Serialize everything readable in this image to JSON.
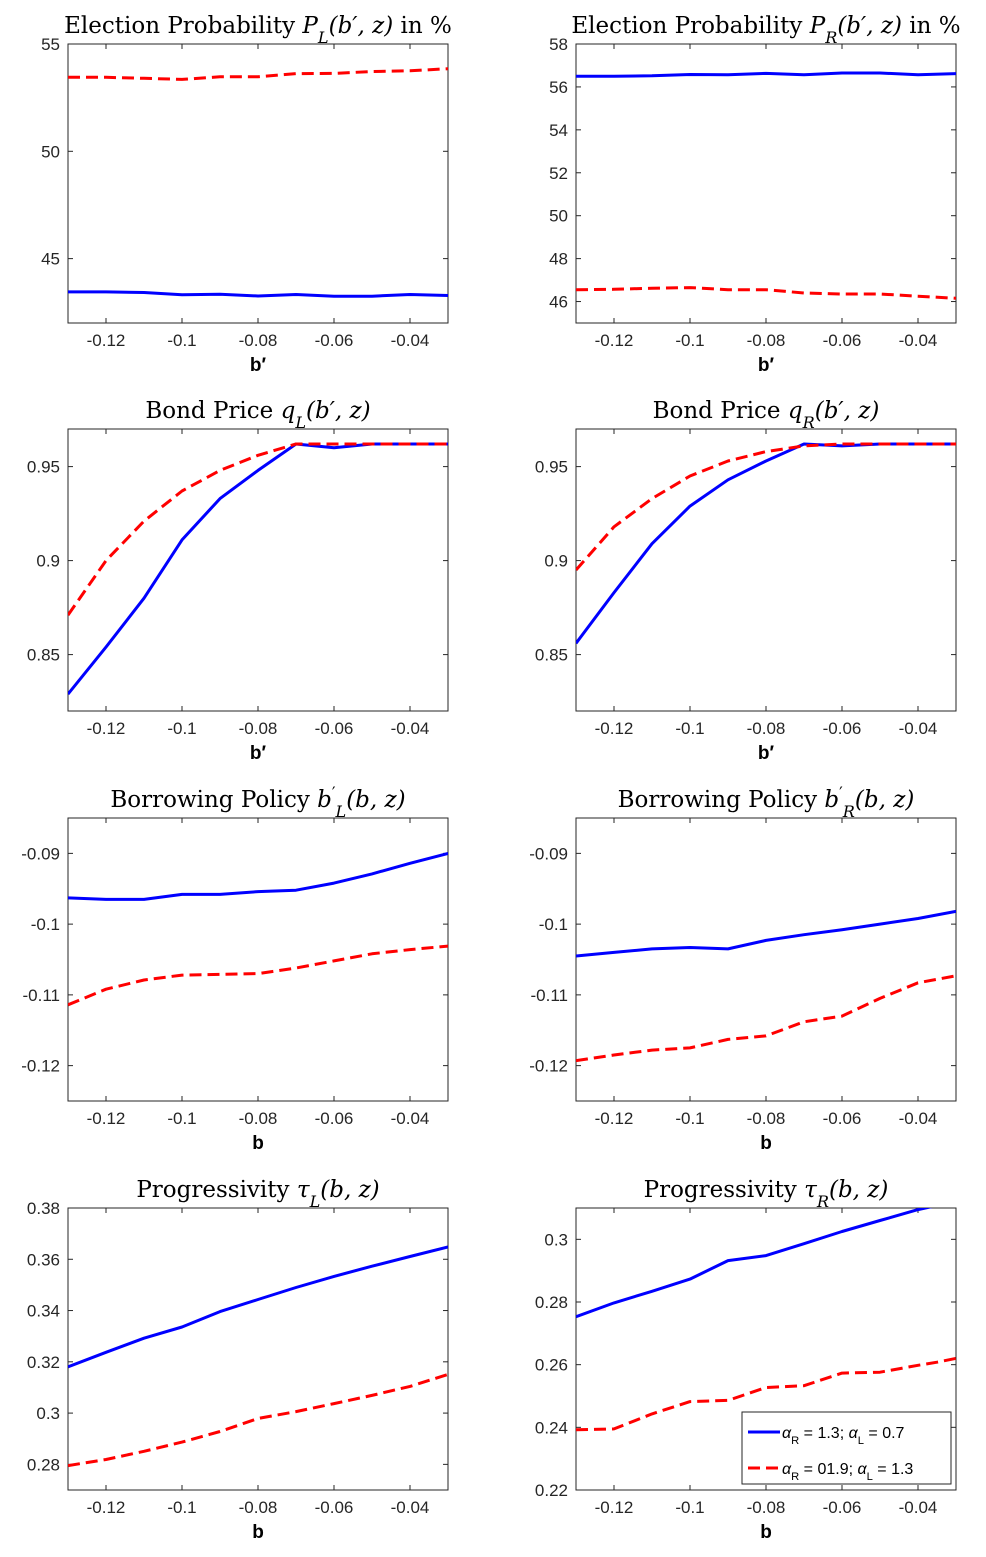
{
  "chart_data": [
    {
      "type": "line",
      "title_parts": [
        {
          "t": "Election Probability "
        },
        {
          "t": "P",
          "i": true
        },
        {
          "t": "L",
          "sub": true,
          "i": true
        },
        {
          "t": "(b′, z)",
          "i": true
        },
        {
          "t": " in %"
        }
      ],
      "xlabel": "b′",
      "xlim": [
        -0.13,
        -0.03
      ],
      "ylim": [
        42,
        55
      ],
      "xticks": [
        -0.12,
        -0.1,
        -0.08,
        -0.06,
        -0.04
      ],
      "xtick_labels": [
        "-0.12",
        "-0.1",
        "-0.08",
        "-0.06",
        "-0.04"
      ],
      "yticks": [
        45,
        50,
        55
      ],
      "ytick_labels": [
        "45",
        "50",
        "55"
      ],
      "grid": false,
      "x": [
        -0.13,
        -0.12,
        -0.11,
        -0.1,
        -0.09,
        -0.08,
        -0.07,
        -0.06,
        -0.05,
        -0.04,
        -0.03
      ],
      "series": [
        {
          "color": "#0000ff",
          "dash": "solid",
          "values": [
            43.45,
            43.45,
            43.42,
            43.32,
            43.34,
            43.26,
            43.33,
            43.25,
            43.25,
            43.33,
            43.28
          ]
        },
        {
          "color": "#ff0000",
          "dash": "dashed",
          "values": [
            53.45,
            53.45,
            53.4,
            53.35,
            53.47,
            53.47,
            53.62,
            53.63,
            53.72,
            53.75,
            53.85
          ]
        }
      ]
    },
    {
      "type": "line",
      "title_parts": [
        {
          "t": "Election Probability "
        },
        {
          "t": "P",
          "i": true
        },
        {
          "t": "R",
          "sub": true,
          "i": true
        },
        {
          "t": "(b′, z)",
          "i": true
        },
        {
          "t": " in %"
        }
      ],
      "xlabel": "b′",
      "xlim": [
        -0.13,
        -0.03
      ],
      "ylim": [
        45,
        58
      ],
      "xticks": [
        -0.12,
        -0.1,
        -0.08,
        -0.06,
        -0.04
      ],
      "xtick_labels": [
        "-0.12",
        "-0.1",
        "-0.08",
        "-0.06",
        "-0.04"
      ],
      "yticks": [
        46,
        48,
        50,
        52,
        54,
        56,
        58
      ],
      "ytick_labels": [
        "46",
        "48",
        "50",
        "52",
        "54",
        "56",
        "58"
      ],
      "grid": false,
      "x": [
        -0.13,
        -0.12,
        -0.11,
        -0.1,
        -0.09,
        -0.08,
        -0.07,
        -0.06,
        -0.05,
        -0.04,
        -0.03
      ],
      "series": [
        {
          "color": "#0000ff",
          "dash": "solid",
          "values": [
            56.5,
            56.5,
            56.52,
            56.58,
            56.57,
            56.63,
            56.57,
            56.65,
            56.65,
            56.57,
            56.62
          ]
        },
        {
          "color": "#ff0000",
          "dash": "dashed",
          "values": [
            46.55,
            46.57,
            46.62,
            46.65,
            46.55,
            46.55,
            46.4,
            46.35,
            46.35,
            46.25,
            46.15
          ]
        }
      ]
    },
    {
      "type": "line",
      "title_parts": [
        {
          "t": "Bond Price "
        },
        {
          "t": "q",
          "i": true
        },
        {
          "t": "L",
          "sub": true,
          "i": true
        },
        {
          "t": "(b′, z)",
          "i": true
        }
      ],
      "xlabel": "b′",
      "xlim": [
        -0.13,
        -0.03
      ],
      "ylim": [
        0.82,
        0.97
      ],
      "xticks": [
        -0.12,
        -0.1,
        -0.08,
        -0.06,
        -0.04
      ],
      "xtick_labels": [
        "-0.12",
        "-0.1",
        "-0.08",
        "-0.06",
        "-0.04"
      ],
      "yticks": [
        0.85,
        0.9,
        0.95
      ],
      "ytick_labels": [
        "0.85",
        "0.9",
        "0.95"
      ],
      "grid": false,
      "x": [
        -0.13,
        -0.12,
        -0.11,
        -0.1,
        -0.09,
        -0.08,
        -0.07,
        -0.06,
        -0.05,
        -0.04,
        -0.03
      ],
      "series": [
        {
          "color": "#0000ff",
          "dash": "solid",
          "values": [
            0.829,
            0.854,
            0.88,
            0.911,
            0.933,
            0.948,
            0.962,
            0.96,
            0.962,
            0.962,
            0.962
          ]
        },
        {
          "color": "#ff0000",
          "dash": "dashed",
          "values": [
            0.871,
            0.9,
            0.921,
            0.937,
            0.948,
            0.956,
            0.962,
            0.962,
            0.962,
            0.962,
            0.962
          ]
        }
      ]
    },
    {
      "type": "line",
      "title_parts": [
        {
          "t": "Bond Price "
        },
        {
          "t": "q",
          "i": true
        },
        {
          "t": "R",
          "sub": true,
          "i": true
        },
        {
          "t": "(b′, z)",
          "i": true
        }
      ],
      "xlabel": "b′",
      "xlim": [
        -0.13,
        -0.03
      ],
      "ylim": [
        0.82,
        0.97
      ],
      "xticks": [
        -0.12,
        -0.1,
        -0.08,
        -0.06,
        -0.04
      ],
      "xtick_labels": [
        "-0.12",
        "-0.1",
        "-0.08",
        "-0.06",
        "-0.04"
      ],
      "yticks": [
        0.85,
        0.9,
        0.95
      ],
      "ytick_labels": [
        "0.85",
        "0.9",
        "0.95"
      ],
      "grid": false,
      "x": [
        -0.13,
        -0.12,
        -0.11,
        -0.1,
        -0.09,
        -0.08,
        -0.07,
        -0.06,
        -0.05,
        -0.04,
        -0.03
      ],
      "series": [
        {
          "color": "#0000ff",
          "dash": "solid",
          "values": [
            0.856,
            0.883,
            0.909,
            0.929,
            0.943,
            0.953,
            0.962,
            0.961,
            0.962,
            0.962,
            0.962
          ]
        },
        {
          "color": "#ff0000",
          "dash": "dashed",
          "values": [
            0.895,
            0.918,
            0.933,
            0.945,
            0.953,
            0.958,
            0.961,
            0.962,
            0.962,
            0.962,
            0.962
          ]
        }
      ]
    },
    {
      "type": "line",
      "title_parts": [
        {
          "t": "Borrowing Policy "
        },
        {
          "t": "b",
          "i": true
        },
        {
          "t": "′",
          "sup": true
        },
        {
          "t": "L",
          "sub": true,
          "i": true
        },
        {
          "t": "(b, z)",
          "i": true
        }
      ],
      "xlabel": "b",
      "xlim": [
        -0.13,
        -0.03
      ],
      "ylim": [
        -0.125,
        -0.085
      ],
      "xticks": [
        -0.12,
        -0.1,
        -0.08,
        -0.06,
        -0.04
      ],
      "xtick_labels": [
        "-0.12",
        "-0.1",
        "-0.08",
        "-0.06",
        "-0.04"
      ],
      "yticks": [
        -0.12,
        -0.11,
        -0.1,
        -0.09
      ],
      "ytick_labels": [
        "-0.12",
        "-0.11",
        "-0.1",
        "-0.09"
      ],
      "grid": false,
      "x": [
        -0.13,
        -0.12,
        -0.11,
        -0.1,
        -0.09,
        -0.08,
        -0.07,
        -0.06,
        -0.05,
        -0.04,
        -0.03
      ],
      "series": [
        {
          "color": "#0000ff",
          "dash": "solid",
          "values": [
            -0.0963,
            -0.0965,
            -0.0965,
            -0.0958,
            -0.0958,
            -0.0954,
            -0.0952,
            -0.0942,
            -0.0929,
            -0.0914,
            -0.09
          ]
        },
        {
          "color": "#ff0000",
          "dash": "dashed",
          "values": [
            -0.1114,
            -0.1092,
            -0.1079,
            -0.1072,
            -0.1071,
            -0.107,
            -0.1062,
            -0.1052,
            -0.1042,
            -0.1036,
            -0.1031
          ]
        }
      ]
    },
    {
      "type": "line",
      "title_parts": [
        {
          "t": "Borrowing Policy "
        },
        {
          "t": "b",
          "i": true
        },
        {
          "t": "′",
          "sup": true
        },
        {
          "t": "R",
          "sub": true,
          "i": true
        },
        {
          "t": "(b, z)",
          "i": true
        }
      ],
      "xlabel": "b",
      "xlim": [
        -0.13,
        -0.03
      ],
      "ylim": [
        -0.125,
        -0.085
      ],
      "xticks": [
        -0.12,
        -0.1,
        -0.08,
        -0.06,
        -0.04
      ],
      "xtick_labels": [
        "-0.12",
        "-0.1",
        "-0.08",
        "-0.06",
        "-0.04"
      ],
      "yticks": [
        -0.12,
        -0.11,
        -0.1,
        -0.09
      ],
      "ytick_labels": [
        "-0.12",
        "-0.11",
        "-0.1",
        "-0.09"
      ],
      "grid": false,
      "x": [
        -0.13,
        -0.12,
        -0.11,
        -0.1,
        -0.09,
        -0.08,
        -0.07,
        -0.06,
        -0.05,
        -0.04,
        -0.03
      ],
      "series": [
        {
          "color": "#0000ff",
          "dash": "solid",
          "values": [
            -0.1045,
            -0.104,
            -0.1035,
            -0.1033,
            -0.1035,
            -0.1023,
            -0.1015,
            -0.1008,
            -0.1,
            -0.0992,
            -0.0982
          ]
        },
        {
          "color": "#ff0000",
          "dash": "dashed",
          "values": [
            -0.1193,
            -0.1185,
            -0.1178,
            -0.1175,
            -0.1163,
            -0.1158,
            -0.1138,
            -0.113,
            -0.1105,
            -0.1083,
            -0.1073
          ]
        }
      ]
    },
    {
      "type": "line",
      "title_parts": [
        {
          "t": "Progressivity "
        },
        {
          "t": "τ",
          "i": true
        },
        {
          "t": "L",
          "sub": true,
          "i": true
        },
        {
          "t": "(b, z)",
          "i": true
        }
      ],
      "xlabel": "b",
      "xlim": [
        -0.13,
        -0.03
      ],
      "ylim": [
        0.27,
        0.38
      ],
      "xticks": [
        -0.12,
        -0.1,
        -0.08,
        -0.06,
        -0.04
      ],
      "xtick_labels": [
        "-0.12",
        "-0.1",
        "-0.08",
        "-0.06",
        "-0.04"
      ],
      "yticks": [
        0.28,
        0.3,
        0.32,
        0.34,
        0.36,
        0.38
      ],
      "ytick_labels": [
        "0.28",
        "0.3",
        "0.32",
        "0.34",
        "0.36",
        "0.38"
      ],
      "grid": false,
      "x": [
        -0.13,
        -0.12,
        -0.11,
        -0.1,
        -0.09,
        -0.08,
        -0.07,
        -0.06,
        -0.05,
        -0.04,
        -0.03
      ],
      "series": [
        {
          "color": "#0000ff",
          "dash": "solid",
          "values": [
            0.318,
            0.3237,
            0.3292,
            0.3336,
            0.3396,
            0.3443,
            0.349,
            0.3533,
            0.3573,
            0.3611,
            0.3648
          ]
        },
        {
          "color": "#ff0000",
          "dash": "dashed",
          "values": [
            0.2795,
            0.2819,
            0.2851,
            0.2887,
            0.2928,
            0.2979,
            0.3006,
            0.3037,
            0.3069,
            0.3104,
            0.3151
          ]
        }
      ]
    },
    {
      "type": "line",
      "title_parts": [
        {
          "t": "Progressivity "
        },
        {
          "t": "τ",
          "i": true
        },
        {
          "t": "R",
          "sub": true,
          "i": true
        },
        {
          "t": "(b, z)",
          "i": true
        }
      ],
      "xlabel": "b",
      "xlim": [
        -0.13,
        -0.03
      ],
      "ylim": [
        0.22,
        0.31
      ],
      "xticks": [
        -0.12,
        -0.1,
        -0.08,
        -0.06,
        -0.04
      ],
      "xtick_labels": [
        "-0.12",
        "-0.1",
        "-0.08",
        "-0.06",
        "-0.04"
      ],
      "yticks": [
        0.22,
        0.24,
        0.26,
        0.28,
        0.3
      ],
      "ytick_labels": [
        "0.22",
        "0.24",
        "0.26",
        "0.28",
        "0.3"
      ],
      "grid": false,
      "x": [
        -0.13,
        -0.12,
        -0.11,
        -0.1,
        -0.09,
        -0.08,
        -0.07,
        -0.06,
        -0.05,
        -0.04,
        -0.035,
        -0.03
      ],
      "series": [
        {
          "color": "#0000ff",
          "dash": "solid",
          "values": [
            0.2753,
            0.2797,
            0.2834,
            0.2873,
            0.2932,
            0.2948,
            0.2986,
            0.3025,
            0.306,
            0.3095,
            0.3108,
            null
          ]
        },
        {
          "color": "#ff0000",
          "dash": "dashed",
          "values": [
            0.2392,
            0.2395,
            0.2443,
            0.2482,
            0.2486,
            0.2527,
            0.2533,
            0.2573,
            0.2576,
            0.2598,
            0.2608,
            0.262
          ]
        }
      ],
      "legend": {
        "position": "bottom-right",
        "entries": [
          {
            "parts": [
              {
                "t": "α",
                "i": true
              },
              {
                "t": "R",
                "sub": true
              },
              {
                "t": " = 1.3; "
              },
              {
                "t": "α",
                "i": true
              },
              {
                "t": "L",
                "sub": true
              },
              {
                "t": " = 0.7"
              }
            ],
            "color": "#0000ff",
            "dash": "solid"
          },
          {
            "parts": [
              {
                "t": "α",
                "i": true
              },
              {
                "t": "R",
                "sub": true
              },
              {
                "t": " = 01.9; "
              },
              {
                "t": "α",
                "i": true
              },
              {
                "t": "L",
                "sub": true
              },
              {
                "t": " = 1.3"
              }
            ],
            "color": "#ff0000",
            "dash": "dashed"
          }
        ]
      }
    }
  ]
}
